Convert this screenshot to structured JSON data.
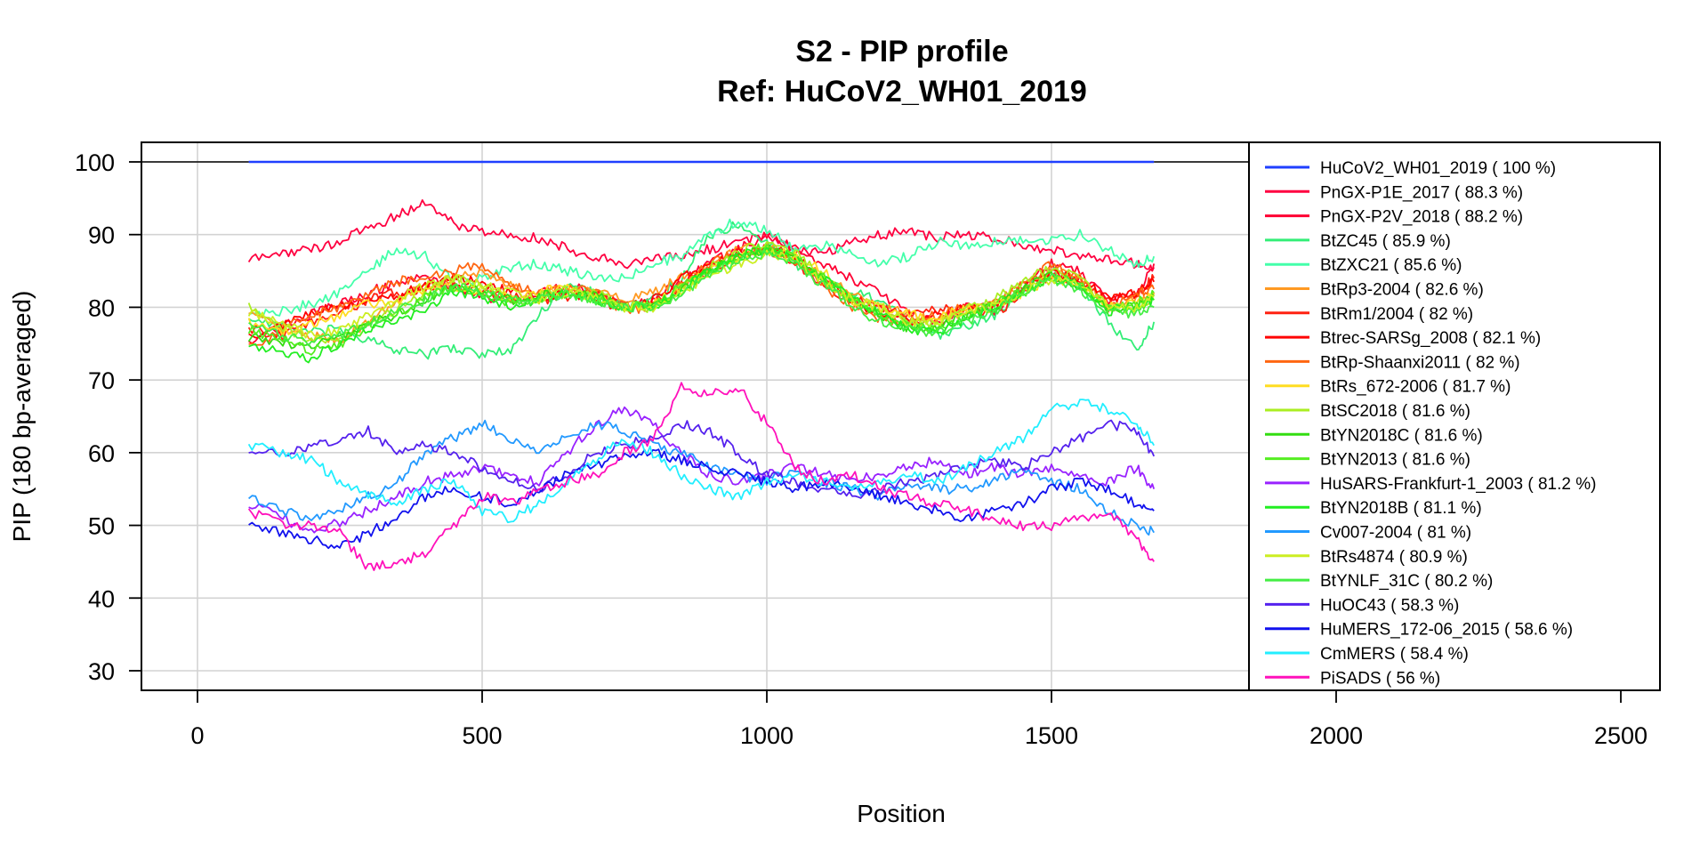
{
  "chart_data": {
    "type": "line",
    "title": "S2 - PIP profile",
    "subtitle": "Ref: HuCoV2_WH01_2019",
    "xlabel": "Position",
    "ylabel": "PIP (180 bp-averaged)",
    "xlim": [
      -100,
      2550
    ],
    "ylim": [
      27,
      103
    ],
    "x_ticks": [
      0,
      500,
      1000,
      1500,
      2000,
      2500
    ],
    "y_ticks": [
      30,
      40,
      50,
      60,
      70,
      80,
      90,
      100
    ],
    "grid": true,
    "legend_position": "right",
    "x": [
      90,
      150,
      200,
      250,
      300,
      350,
      400,
      450,
      500,
      550,
      600,
      650,
      700,
      750,
      800,
      850,
      900,
      950,
      1000,
      1050,
      1100,
      1150,
      1200,
      1250,
      1300,
      1350,
      1400,
      1450,
      1500,
      1550,
      1600,
      1650,
      1680
    ],
    "series": [
      {
        "name": "HuCoV2_WH01_2019 ( 100 %)",
        "color": "#1f3fff",
        "values": [
          100,
          100,
          100,
          100,
          100,
          100,
          100,
          100,
          100,
          100,
          100,
          100,
          100,
          100,
          100,
          100,
          100,
          100,
          100,
          100,
          100,
          100,
          100,
          100,
          100,
          100,
          100,
          100,
          100,
          100,
          100,
          100,
          100
        ]
      },
      {
        "name": "PnGX-P1E_2017 ( 88.3 %)",
        "color": "#ff0040",
        "values": [
          86.5,
          87.5,
          88,
          89,
          91,
          92.5,
          94.5,
          91.5,
          90.5,
          90,
          89.5,
          88,
          87,
          86,
          86.5,
          87,
          88,
          89,
          90,
          88,
          87.5,
          89,
          90,
          90.5,
          89.5,
          90,
          89.5,
          88.5,
          88,
          87,
          86.5,
          86,
          85.5
        ]
      },
      {
        "name": "PnGX-P2V_2018 ( 88.2 %)",
        "color": "#ff0033",
        "values": [
          75.5,
          77.5,
          79,
          80.5,
          82,
          83.5,
          84,
          83,
          81.5,
          81,
          82,
          83,
          82,
          80,
          81,
          83.5,
          86,
          88,
          90,
          88,
          86,
          84,
          82,
          79,
          78,
          80,
          79.5,
          83,
          86,
          85,
          81,
          82,
          86
        ]
      },
      {
        "name": "BtZC45 ( 85.9 %)",
        "color": "#33ee77",
        "values": [
          78.5,
          77.5,
          76.5,
          77,
          75.5,
          74,
          73.5,
          74.5,
          73.5,
          74,
          79,
          83,
          82,
          80,
          81,
          84,
          90,
          91.5,
          89,
          86,
          84,
          82,
          81,
          78,
          76,
          77.5,
          79,
          82.5,
          85,
          83,
          78,
          74,
          78
        ]
      },
      {
        "name": "BtZXC21 ( 85.6 %)",
        "color": "#44ffaa",
        "values": [
          79,
          79.5,
          80.5,
          82,
          85,
          88,
          87,
          83.5,
          84,
          85.5,
          86,
          85,
          84,
          84,
          86,
          87,
          90,
          92,
          90.5,
          88,
          88.5,
          87.5,
          86,
          87,
          89,
          88.5,
          89,
          89.5,
          89,
          90,
          88,
          86,
          87
        ]
      },
      {
        "name": "BtRp3-2004 ( 82.6 %)",
        "color": "#ff9922",
        "values": [
          79,
          77,
          76,
          75.5,
          78,
          81,
          83,
          84,
          85,
          83,
          82,
          82.5,
          82,
          81,
          82,
          84,
          86,
          88,
          88.5,
          87,
          84,
          82,
          80,
          79,
          78,
          79.5,
          80,
          83,
          85,
          84,
          80,
          81,
          82
        ]
      },
      {
        "name": "BtRm1/2004 ( 82 %)",
        "color": "#ff2211",
        "values": [
          77,
          76,
          78,
          79.5,
          81,
          82,
          82.5,
          83,
          82,
          81.5,
          81,
          81.5,
          82,
          80,
          80.5,
          83,
          85,
          87,
          88,
          86,
          83,
          81,
          80,
          79,
          79.5,
          80,
          79,
          82,
          84.5,
          83,
          81,
          82,
          84
        ]
      },
      {
        "name": "Btrec-SARSg_2008 ( 82.1 %)",
        "color": "#ff0000",
        "values": [
          76,
          77.5,
          79.5,
          80,
          81,
          81.5,
          83,
          84,
          83.5,
          82,
          81.5,
          82,
          81,
          80,
          81,
          84,
          86,
          87.5,
          88,
          87,
          84,
          81,
          79,
          78,
          79,
          80,
          80.5,
          83,
          85,
          84,
          81,
          82,
          83.5
        ]
      },
      {
        "name": "BtRp-Shaanxi2011 ( 82 %)",
        "color": "#ff6611",
        "values": [
          74.5,
          77,
          79,
          80,
          82,
          83.5,
          84,
          85,
          86,
          83,
          82,
          82.5,
          82,
          79.5,
          80,
          83,
          86,
          87.5,
          88,
          86.5,
          83,
          80,
          78.5,
          78,
          79,
          80,
          81,
          83,
          86,
          84,
          80,
          82,
          82.5
        ]
      },
      {
        "name": "BtRs_672-2006 ( 81.7 %)",
        "color": "#ffdd22",
        "values": [
          78,
          76.5,
          77.5,
          79,
          80.5,
          81,
          82,
          83,
          82,
          81.5,
          82,
          83,
          81,
          80,
          80.5,
          82.5,
          85,
          87,
          88,
          87,
          85,
          81,
          80,
          79,
          78.5,
          80,
          80.5,
          82,
          84,
          83,
          80,
          80.5,
          81.5
        ]
      },
      {
        "name": "BtSC2018 ( 81.6 %)",
        "color": "#aaee22",
        "values": [
          80,
          77,
          75.5,
          76,
          78,
          79.5,
          82,
          84,
          83,
          81,
          81.5,
          82.5,
          82,
          80,
          80,
          83,
          85.5,
          87.5,
          89,
          87.5,
          84,
          81.5,
          79.5,
          78,
          77.5,
          80,
          81,
          83.5,
          85.5,
          84,
          80,
          80,
          81
        ]
      },
      {
        "name": "BtYN2018C ( 81.6 %)",
        "color": "#33dd11",
        "values": [
          76,
          75,
          74.5,
          76,
          78,
          79,
          81,
          83,
          82,
          81,
          81.5,
          82,
          81.5,
          80,
          80,
          82.5,
          85,
          87,
          88,
          87,
          84,
          81,
          79,
          77,
          77,
          79,
          80,
          82.5,
          84.5,
          83,
          80,
          80,
          81.5
        ]
      },
      {
        "name": "BtYN2013 ( 81.6 %)",
        "color": "#55ee22",
        "values": [
          77,
          75.5,
          74,
          75,
          77.5,
          79,
          81.5,
          82.5,
          82,
          80.5,
          81,
          82,
          81,
          80,
          80.5,
          83,
          85,
          87,
          88.5,
          87,
          84,
          81,
          79,
          77.5,
          77,
          79,
          80.5,
          82,
          84,
          83.5,
          80,
          80.5,
          82
        ]
      },
      {
        "name": "HuSARS-Frankfurt-1_2003 ( 81.2 %)",
        "color": "#9922ff",
        "values": [
          53,
          51,
          49,
          50.5,
          52,
          54,
          56,
          57,
          58,
          57,
          56,
          60,
          64,
          66,
          64,
          60,
          57,
          56,
          57,
          58,
          57,
          56,
          57,
          58,
          59,
          57,
          58,
          57,
          58,
          57,
          56,
          58,
          55
        ]
      },
      {
        "name": "BtYN2018B ( 81.1 %)",
        "color": "#22ee22",
        "values": [
          75,
          74,
          73,
          75,
          77,
          78,
          80,
          82,
          81.5,
          80,
          81,
          82,
          81,
          80,
          80,
          82.5,
          85,
          87,
          88,
          86.5,
          84,
          81,
          79,
          77,
          76.5,
          78.5,
          80,
          82,
          84,
          83,
          79.5,
          80,
          81
        ]
      },
      {
        "name": "Cv007-2004 ( 81 %)",
        "color": "#2299ff",
        "values": [
          54,
          52,
          51,
          52,
          54,
          56,
          60,
          62,
          64,
          62,
          60,
          62,
          64,
          63,
          61,
          60,
          58,
          57,
          56,
          58,
          56,
          55,
          54,
          56,
          55,
          55,
          56,
          58,
          56,
          55,
          52,
          50,
          49
        ]
      },
      {
        "name": "BtRs4874 ( 80.9 %)",
        "color": "#ccee22",
        "values": [
          79,
          78,
          76,
          77,
          79,
          81,
          83,
          84,
          83,
          82,
          81,
          82,
          81.5,
          80,
          80,
          82,
          84,
          86,
          87.5,
          86.5,
          83.5,
          81,
          80,
          78,
          78,
          79.5,
          80,
          82,
          84,
          83.5,
          80,
          80,
          81.5
        ]
      },
      {
        "name": "BtYNLF_31C ( 80.2 %)",
        "color": "#44ee44",
        "values": [
          78,
          76,
          75,
          76,
          78,
          79.5,
          81,
          83,
          82,
          81,
          81,
          82,
          81,
          80,
          80,
          82,
          84.5,
          86.5,
          87.5,
          86,
          83,
          80,
          78,
          77,
          76.5,
          78,
          79.5,
          82,
          84,
          82.5,
          79.5,
          79,
          80
        ]
      },
      {
        "name": "HuOC43 ( 58.3 %)",
        "color": "#5522ee",
        "values": [
          60,
          60,
          61,
          62,
          63,
          60,
          61,
          60,
          58,
          56,
          55,
          57,
          60,
          61,
          62,
          64,
          63,
          60,
          57,
          56,
          55,
          54,
          55,
          56,
          57,
          58,
          59,
          58,
          60,
          62,
          64,
          63,
          59.5
        ]
      },
      {
        "name": "HuMERS_172-06_2015 ( 58.6 %)",
        "color": "#1111ee",
        "values": [
          50,
          49,
          48,
          47,
          49,
          51,
          54,
          55,
          54,
          53,
          55,
          57,
          58,
          60,
          60,
          59,
          58,
          57,
          56,
          55,
          56,
          55,
          54,
          53,
          52,
          51,
          52,
          53,
          55,
          56,
          55,
          53,
          52
        ]
      },
      {
        "name": "CmMERS ( 58.4 %)",
        "color": "#22eeff",
        "values": [
          61,
          60,
          59,
          56,
          54,
          53,
          55,
          56,
          52,
          51,
          53,
          56,
          59,
          62,
          60,
          57,
          55,
          54,
          56,
          57,
          56,
          55,
          56,
          57,
          56,
          58,
          60,
          62,
          66,
          67,
          66,
          64,
          61
        ]
      },
      {
        "name": "PiSADS ( 56 %)",
        "color": "#ff11bb",
        "values": [
          52,
          50,
          50,
          49,
          44,
          45,
          46,
          50,
          54,
          53,
          55,
          56,
          57,
          60,
          62,
          69,
          68,
          69,
          64,
          58,
          56,
          57,
          55,
          54,
          53,
          52,
          51,
          50,
          50,
          51,
          52,
          48,
          45
        ]
      }
    ]
  }
}
